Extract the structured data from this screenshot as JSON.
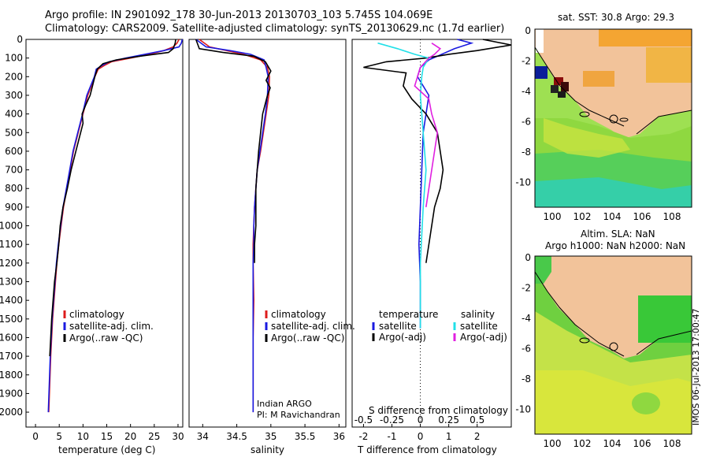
{
  "header": {
    "line1": "Argo profile: IN 2901092_178 30-Jun-2013 20130703_103 5.745S 104.069E",
    "line2": "Climatology: CARS2009. Satellite-adjusted climatology: synTS_20130629.nc (1.7d earlier)"
  },
  "colors": {
    "climatology": "#dd1c1c",
    "satellite": "#1a1ae0",
    "argo": "#000000",
    "satellite_s": "#22e0e8",
    "argo_s": "#e020e0"
  },
  "chart_data": [
    {
      "type": "line",
      "title": "",
      "xlabel": "temperature (deg C)",
      "ylabel": "",
      "xlim": [
        -2,
        31
      ],
      "ylim": [
        2080,
        0
      ],
      "xticks": [
        0,
        5,
        10,
        15,
        20,
        25,
        30
      ],
      "yticks": [
        0,
        100,
        200,
        300,
        400,
        500,
        600,
        700,
        800,
        900,
        1000,
        1100,
        1200,
        1300,
        1400,
        1500,
        1600,
        1700,
        1800,
        1900,
        2000
      ],
      "legend": [
        "climatology",
        "satellite-adj. clim.",
        "Argo(..raw -QC)"
      ],
      "series": [
        {
          "name": "climatology",
          "color": "#dd1c1c",
          "x": [
            30.2,
            29.8,
            29,
            27,
            24,
            20,
            16,
            14.5,
            13.2,
            12.5,
            11,
            10,
            9,
            8,
            7.3,
            6.6,
            5.9,
            5.4,
            4.9,
            4.5,
            4.2,
            3.6,
            3.2,
            2.8
          ],
          "y": [
            0,
            20,
            40,
            60,
            80,
            100,
            120,
            140,
            160,
            200,
            300,
            400,
            500,
            600,
            700,
            800,
            900,
            1000,
            1100,
            1200,
            1300,
            1500,
            1700,
            2000
          ]
        },
        {
          "name": "satellite-adj. clim.",
          "color": "#1a1ae0",
          "x": [
            30.9,
            30.7,
            30.2,
            27,
            23,
            19,
            15.5,
            14,
            12.8,
            12.4,
            10.8,
            9.9,
            8.9,
            7.9,
            7.2,
            6.5,
            5.8,
            5.3,
            4.8,
            4.4,
            4.1,
            3.5,
            3.1,
            2.7
          ],
          "y": [
            0,
            20,
            40,
            60,
            80,
            100,
            120,
            140,
            160,
            200,
            300,
            400,
            500,
            600,
            700,
            800,
            900,
            1000,
            1100,
            1200,
            1300,
            1500,
            1700,
            2000
          ]
        },
        {
          "name": "Argo(..raw -QC)",
          "color": "#000000",
          "x": [
            29.5,
            29.4,
            29,
            28,
            22,
            17,
            14.2,
            13,
            12.5,
            11.5,
            10.6,
            9.8,
            10,
            8.5,
            7.5,
            6.7,
            5.8,
            5.2,
            4.9,
            4.5,
            4.0,
            3.4,
            3.0
          ],
          "y": [
            0,
            20,
            50,
            70,
            90,
            110,
            130,
            160,
            200,
            300,
            350,
            400,
            450,
            600,
            700,
            800,
            900,
            1000,
            1100,
            1200,
            1300,
            1500,
            1700
          ]
        }
      ]
    },
    {
      "type": "line",
      "title": "",
      "xlabel": "salinity",
      "ylabel": "",
      "xlim": [
        33.8,
        36.1
      ],
      "ylim": [
        2080,
        0
      ],
      "xticks": [
        34,
        34.5,
        35,
        35.5,
        36
      ],
      "legend": [
        "climatology",
        "satellite-adj. clim.",
        "Argo(..raw -QC)"
      ],
      "series": [
        {
          "name": "climatology",
          "color": "#dd1c1c",
          "x": [
            33.95,
            34.1,
            34.35,
            34.6,
            34.85,
            34.95,
            34.98,
            34.97,
            34.93,
            34.89,
            34.85,
            34.8,
            34.78,
            34.76,
            34.75,
            34.74,
            34.74,
            34.75,
            34.74,
            34.74
          ],
          "y": [
            0,
            40,
            60,
            80,
            110,
            150,
            200,
            300,
            400,
            500,
            600,
            700,
            800,
            900,
            1000,
            1100,
            1200,
            1400,
            1600,
            2000
          ]
        },
        {
          "name": "satellite-adj. clim.",
          "color": "#1a1ae0",
          "x": [
            33.9,
            34.05,
            34.4,
            34.7,
            34.9,
            34.93,
            34.96,
            34.95,
            34.92,
            34.88,
            34.84,
            34.8,
            34.78,
            34.76,
            34.75,
            34.75,
            34.74,
            34.74,
            34.74,
            34.74
          ],
          "y": [
            0,
            40,
            60,
            80,
            110,
            150,
            200,
            300,
            400,
            500,
            600,
            700,
            800,
            900,
            1000,
            1100,
            1200,
            1400,
            1600,
            2000
          ]
        },
        {
          "name": "Argo(..raw -QC)",
          "color": "#000000",
          "x": [
            33.9,
            33.95,
            34.3,
            34.75,
            34.92,
            35.0,
            34.93,
            34.99,
            34.95,
            34.88,
            34.85,
            34.82,
            34.8,
            34.78,
            34.78,
            34.78,
            34.76,
            34.76
          ],
          "y": [
            0,
            50,
            70,
            90,
            120,
            170,
            220,
            260,
            300,
            400,
            500,
            600,
            700,
            800,
            900,
            1000,
            1100,
            1200
          ]
        }
      ]
    },
    {
      "type": "line",
      "title": "",
      "xlabel": "T difference from climatology",
      "x2label": "S difference from climatology",
      "xlim": [
        -2.4,
        3.2
      ],
      "ylim": [
        2080,
        0
      ],
      "xticks": [
        -2,
        -1,
        0,
        1,
        2
      ],
      "x2ticks": [
        "-0.5",
        "-0.25",
        "0",
        "0.25",
        "0.5"
      ],
      "legend": [
        "temperature",
        "satellite",
        "Argo(-adj)",
        "salinity",
        "satellite",
        "Argo(-adj)"
      ],
      "series": [
        {
          "name": "satellite",
          "color": "#1a1ae0",
          "x": [
            1.3,
            1.8,
            1.2,
            0.6,
            0.3,
            0.0,
            -0.1,
            0.3,
            0.2,
            0.1,
            0.05,
            0.0,
            -0.05,
            0.0,
            0.0
          ],
          "y": [
            0,
            20,
            50,
            90,
            110,
            150,
            200,
            300,
            400,
            500,
            700,
            900,
            1100,
            1300,
            1550
          ]
        },
        {
          "name": "Argo(-adj)",
          "color": "#000000",
          "x": [
            2.2,
            3.2,
            2.0,
            1.0,
            0.2,
            -1.2,
            -2.0,
            -0.5,
            -0.6,
            -0.3,
            0.2,
            0.6,
            0.7,
            0.8,
            0.7,
            0.5,
            0.4,
            0.3,
            0.2
          ],
          "y": [
            0,
            30,
            60,
            80,
            100,
            120,
            150,
            180,
            250,
            320,
            400,
            500,
            600,
            700,
            800,
            900,
            1000,
            1100,
            1200
          ]
        },
        {
          "name": "satellite",
          "color": "#22e0e8",
          "x": [
            -1.5,
            -0.8,
            -0.2,
            0.3,
            0.1,
            0.05,
            0.0,
            0.1,
            0.2,
            0.1,
            0.0,
            0.0
          ],
          "y": [
            20,
            50,
            80,
            100,
            150,
            200,
            300,
            500,
            700,
            900,
            1200,
            1550
          ]
        },
        {
          "name": "Argo(-adj)",
          "color": "#e020e0",
          "x": [
            0.4,
            0.7,
            0.5,
            0.3,
            0.0,
            -0.2,
            0.3,
            0.4,
            0.6,
            0.5,
            0.4,
            0.3,
            0.2
          ],
          "y": [
            20,
            50,
            80,
            100,
            150,
            250,
            320,
            400,
            500,
            600,
            700,
            800,
            900
          ]
        }
      ]
    },
    {
      "type": "heatmap",
      "title": "sat. SST: 30.8 Argo: 29.3",
      "xticks": [
        "100",
        "102",
        "104",
        "106",
        "108"
      ],
      "yticks": [
        "0",
        "-2",
        "-4",
        "-6",
        "-8",
        "-10"
      ]
    },
    {
      "type": "heatmap",
      "title": "Altim. SLA: NaN",
      "subtitle": "Argo h1000: NaN h2000: NaN",
      "xticks": [
        "100",
        "102",
        "104",
        "106",
        "108"
      ],
      "yticks": [
        "0",
        "-2",
        "-4",
        "-6",
        "-8",
        "-10"
      ]
    }
  ],
  "annotations": {
    "panel2_note1": "Indian ARGO",
    "panel2_note2": "PI: M Ravichandran",
    "side_stamp": "IMOS 06-Jul-2013 17:00:47"
  }
}
